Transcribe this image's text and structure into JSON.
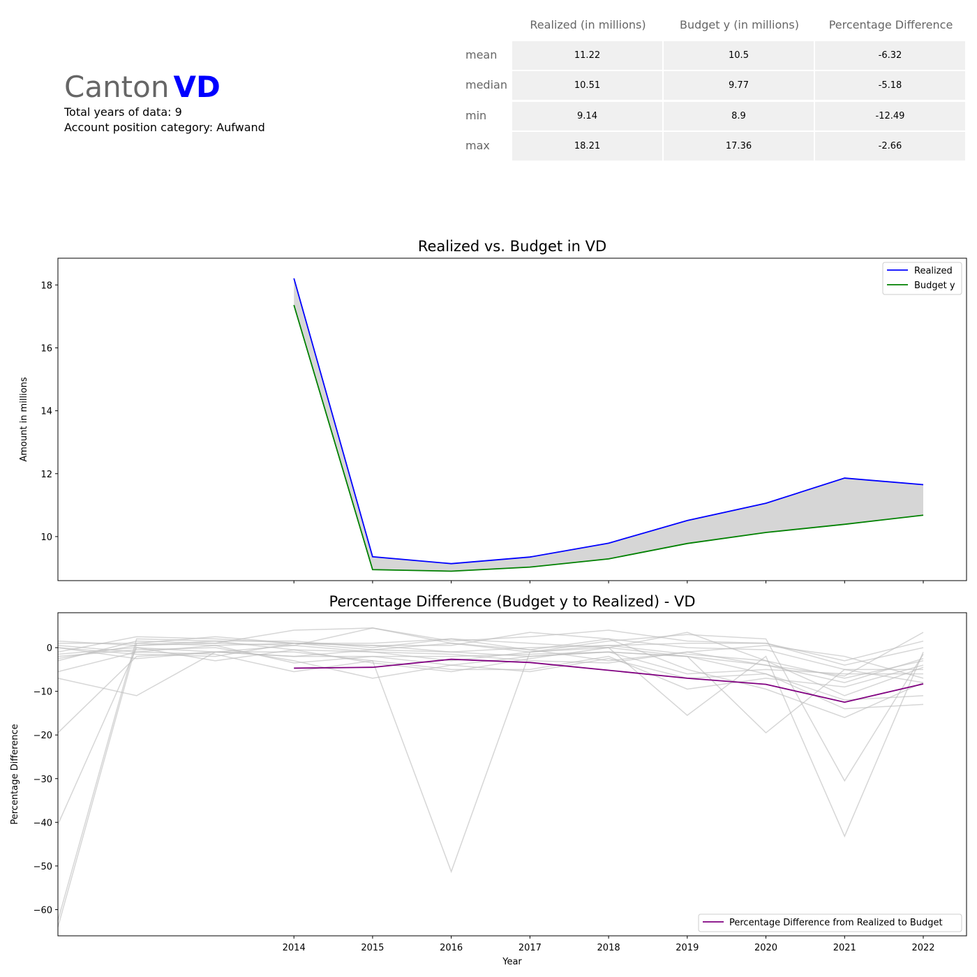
{
  "header": {
    "canton_word": "Canton",
    "canton_code": "VD",
    "total_years": "Total years of data: 9",
    "category": "Account position category: Aufwand"
  },
  "stats_table": {
    "columns": [
      "Realized (in millions)",
      "Budget y (in millions)",
      "Percentage Difference"
    ],
    "rows": [
      {
        "label": "mean",
        "values": [
          "11.22",
          "10.5",
          "-6.32"
        ]
      },
      {
        "label": "median",
        "values": [
          "10.51",
          "9.77",
          "-5.18"
        ]
      },
      {
        "label": "min",
        "values": [
          "9.14",
          "8.9",
          "-12.49"
        ]
      },
      {
        "label": "max",
        "values": [
          "18.21",
          "17.36",
          "-2.66"
        ]
      }
    ]
  },
  "chart_data": [
    {
      "type": "line",
      "title": "Realized vs. Budget in VD",
      "xlabel": "",
      "ylabel": "Amount in millions",
      "x": [
        2014,
        2015,
        2016,
        2017,
        2018,
        2019,
        2020,
        2021,
        2022
      ],
      "xlim": [
        2011,
        2022.55
      ],
      "ylim": [
        8.6,
        18.85
      ],
      "yticks": [
        10,
        12,
        14,
        16,
        18
      ],
      "fill_between": true,
      "legend_position": "top-right",
      "series": [
        {
          "name": "Realized",
          "color": "#0000ff",
          "values": [
            18.21,
            9.36,
            9.14,
            9.35,
            9.79,
            10.51,
            11.06,
            11.86,
            11.65
          ]
        },
        {
          "name": "Budget y",
          "color": "#008000",
          "values": [
            17.36,
            8.95,
            8.9,
            9.03,
            9.29,
            9.78,
            10.13,
            10.39,
            10.68
          ]
        }
      ]
    },
    {
      "type": "line",
      "title": "Percentage Difference (Budget y to Realized) - VD",
      "xlabel": "Year",
      "ylabel": "Percentage Difference",
      "xticks": [
        2014,
        2015,
        2016,
        2017,
        2018,
        2019,
        2020,
        2021,
        2022
      ],
      "xlim": [
        2011,
        2022.55
      ],
      "ylim": [
        -66,
        8
      ],
      "yticks": [
        0,
        -10,
        -20,
        -30,
        -40,
        -50,
        -60
      ],
      "legend_position": "bottom-right",
      "highlight_series": {
        "name": "Percentage Difference from Realized to Budget",
        "color": "#800080",
        "x": [
          2014,
          2015,
          2016,
          2017,
          2018,
          2019,
          2020,
          2021,
          2022
        ],
        "values": [
          -4.7,
          -4.5,
          -2.66,
          -3.4,
          -5.18,
          -7.0,
          -8.4,
          -12.49,
          -8.3
        ]
      },
      "background_color": "#bbbbbb",
      "background_x": [
        2011,
        2012,
        2013,
        2014,
        2015,
        2016,
        2017,
        2018,
        2019,
        2020,
        2021,
        2022
      ],
      "background_series": [
        {
          "values": [
            1.5,
            0.5,
            1.0,
            0.5,
            -1.0,
            -3.0,
            -1.0,
            0.5,
            -1.5,
            -3.0,
            -7.0,
            -3.0
          ]
        },
        {
          "values": [
            -62.5,
            2.0,
            1.5,
            1.5,
            0.0,
            2.0,
            1.0,
            0.0,
            -2.0,
            -4.0,
            -8.0,
            -2.5
          ]
        },
        {
          "values": [
            -64.0,
            1.0,
            0.5,
            1.0,
            -0.5,
            -1.0,
            0.0,
            0.5,
            1.0,
            1.0,
            -4.0,
            0.0
          ]
        },
        {
          "values": [
            -40.5,
            0.0,
            -1.0,
            -1.0,
            -3.0,
            -51.3,
            -1.0,
            0.0,
            -15.5,
            -2.0,
            -43.2,
            -1.0
          ]
        },
        {
          "values": [
            -19.5,
            -2.0,
            -1.0,
            -2.0,
            -2.0,
            -2.0,
            -1.5,
            -1.0,
            -2.0,
            -19.5,
            -5.0,
            -5.0
          ]
        },
        {
          "values": [
            -7.0,
            -11.0,
            -1.0,
            0.5,
            4.5,
            1.0,
            -1.0,
            1.5,
            3.0,
            2.0,
            -30.5,
            -1.5
          ]
        },
        {
          "values": [
            -1.0,
            2.5,
            2.0,
            1.0,
            0.5,
            -1.0,
            -2.0,
            -1.0,
            -2.0,
            -6.0,
            -14.0,
            -13.0
          ]
        },
        {
          "values": [
            0.0,
            -2.5,
            -1.0,
            -2.0,
            -0.5,
            1.0,
            -0.5,
            2.0,
            -5.0,
            -9.5,
            -16.0,
            -8.0
          ]
        },
        {
          "values": [
            -2.0,
            -0.5,
            0.0,
            -3.0,
            -7.0,
            -4.0,
            -5.5,
            -2.5,
            -7.0,
            -6.0,
            -12.0,
            -11.0
          ]
        },
        {
          "values": [
            -3.0,
            1.5,
            1.0,
            4.0,
            4.5,
            1.5,
            2.5,
            4.0,
            1.5,
            1.0,
            -3.0,
            1.5
          ]
        },
        {
          "values": [
            -5.5,
            -1.0,
            -1.5,
            -5.5,
            -3.0,
            -5.0,
            -5.0,
            -2.0,
            -9.5,
            -7.0,
            -9.0,
            -4.0
          ]
        },
        {
          "values": [
            0.5,
            -1.0,
            0.5,
            -3.5,
            -2.0,
            -4.0,
            -2.0,
            -1.0,
            -6.0,
            -5.0,
            -6.0,
            -6.0
          ]
        },
        {
          "values": [
            -1.5,
            0.0,
            -3.0,
            -0.5,
            -1.0,
            -1.5,
            -3.0,
            -3.5,
            -1.0,
            -4.0,
            -6.5,
            3.5
          ]
        },
        {
          "values": [
            1.0,
            1.0,
            2.5,
            1.0,
            0.5,
            0.5,
            3.5,
            2.0,
            0.0,
            -0.5,
            -5.0,
            -8.0
          ]
        },
        {
          "values": [
            -2.5,
            0.5,
            1.5,
            -0.5,
            -3.5,
            -5.5,
            -2.5,
            0.0,
            3.5,
            -3.0,
            -11.0,
            -4.5
          ]
        },
        {
          "values": [
            0.0,
            -1.5,
            -2.0,
            1.0,
            1.0,
            2.0,
            -0.5,
            -3.0,
            -1.0,
            0.5,
            -2.0,
            -7.0
          ]
        }
      ]
    }
  ]
}
